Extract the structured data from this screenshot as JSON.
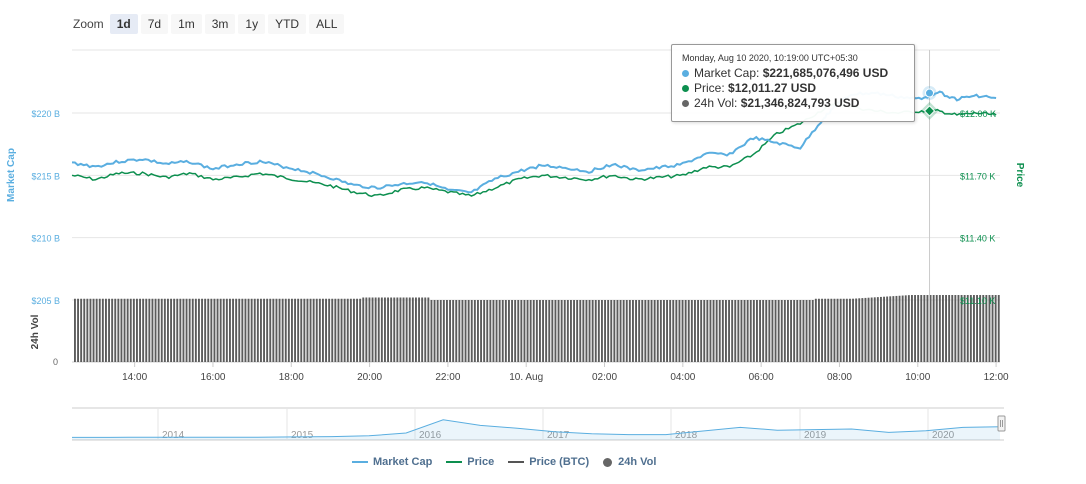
{
  "zoom": {
    "label": "Zoom",
    "buttons": [
      "1d",
      "7d",
      "1m",
      "3m",
      "1y",
      "YTD",
      "ALL"
    ],
    "active": "1d"
  },
  "colors": {
    "market_cap": "#5aaee0",
    "price": "#0d8f4f",
    "volume": "#666666",
    "price_btc": "#555555"
  },
  "tooltip": {
    "date": "Monday, Aug 10 2020, 10:19:00 UTC+05:30",
    "market_cap_label": "Market Cap:",
    "market_cap_value": "$221,685,076,496 USD",
    "price_label": "Price:",
    "price_value": "$12,011.27 USD",
    "vol_label": "24h Vol:",
    "vol_value": "$21,346,824,793 USD"
  },
  "legend": [
    {
      "label": "Market Cap",
      "kind": "line",
      "color": "#5aaee0"
    },
    {
      "label": "Price",
      "kind": "line",
      "color": "#0d8f4f"
    },
    {
      "label": "Price (BTC)",
      "kind": "line",
      "color": "#555555"
    },
    {
      "label": "24h Vol",
      "kind": "dot",
      "color": "#666666"
    }
  ],
  "chart_data": {
    "type": "line",
    "x_ticks": [
      "14:00",
      "16:00",
      "18:00",
      "20:00",
      "22:00",
      "10. Aug",
      "02:00",
      "04:00",
      "06:00",
      "08:00",
      "10:00",
      "12:00"
    ],
    "x_range_hours": [
      12.4,
      36.1
    ],
    "left_axis": {
      "label": "Market Cap",
      "ticks": [
        "$220 B",
        "$215 B",
        "$210 B",
        "$205 B"
      ],
      "tick_values": [
        220,
        215,
        210,
        205
      ],
      "unit": "B"
    },
    "right_axis": {
      "label": "Price",
      "ticks": [
        "$12.00 K",
        "$11.70 K",
        "$11.40 K",
        "$11.10 K"
      ],
      "tick_values": [
        12.0,
        11.7,
        11.4,
        11.1
      ],
      "unit": "K"
    },
    "volume_axis": {
      "label": "24h Vol",
      "ticks": [
        "0"
      ]
    },
    "market_cap": {
      "name": "Market Cap",
      "x": [
        12.4,
        13.0,
        13.6,
        14.2,
        14.8,
        15.4,
        16.0,
        16.6,
        17.2,
        17.8,
        18.4,
        19.0,
        19.6,
        20.2,
        20.8,
        21.4,
        22.0,
        22.6,
        23.2,
        23.8,
        24.4,
        25.0,
        25.6,
        26.2,
        26.8,
        27.4,
        28.0,
        28.6,
        29.2,
        29.8,
        30.4,
        31.0,
        31.6,
        31.9,
        32.3,
        32.9,
        33.5,
        34.1,
        34.5,
        35.0,
        35.5,
        36.0
      ],
      "y": [
        216.0,
        215.7,
        216.1,
        216.3,
        215.9,
        216.1,
        215.5,
        215.9,
        216.1,
        215.7,
        215.3,
        214.8,
        214.2,
        214.0,
        214.3,
        214.5,
        213.8,
        213.6,
        214.7,
        215.3,
        215.8,
        215.6,
        215.3,
        215.9,
        215.4,
        215.6,
        215.9,
        216.7,
        216.7,
        218.0,
        217.6,
        217.2,
        219.6,
        220.6,
        221.5,
        221.6,
        221.3,
        221.1,
        221.7,
        221.1,
        221.4,
        221.2
      ]
    },
    "price": {
      "name": "Price",
      "x": [
        12.4,
        13.0,
        13.6,
        14.2,
        14.8,
        15.4,
        16.0,
        16.6,
        17.2,
        17.8,
        18.4,
        19.0,
        19.6,
        20.2,
        20.8,
        21.4,
        22.0,
        22.6,
        23.2,
        23.8,
        24.4,
        25.0,
        25.6,
        26.2,
        26.8,
        27.4,
        28.0,
        28.6,
        29.2,
        29.8,
        30.4,
        31.0,
        31.6,
        31.9,
        32.3,
        32.9,
        33.5,
        34.1,
        34.5,
        35.0,
        35.5,
        36.0
      ],
      "y": [
        11.7,
        11.68,
        11.71,
        11.71,
        11.69,
        11.71,
        11.68,
        11.69,
        11.71,
        11.69,
        11.67,
        11.65,
        11.62,
        11.6,
        11.63,
        11.64,
        11.62,
        11.6,
        11.64,
        11.68,
        11.7,
        11.69,
        11.68,
        11.7,
        11.68,
        11.69,
        11.7,
        11.74,
        11.74,
        11.8,
        11.9,
        11.95,
        12.02,
        12.05,
        12.03,
        12.01,
        12.0,
        12.01,
        12.01,
        11.99,
        12.0,
        11.99
      ]
    },
    "volume": {
      "name": "24h Vol",
      "x_breaks": [
        12.4,
        19.8,
        21.5,
        31.3,
        32.3,
        33.8,
        36.1
      ],
      "level": [
        205.1,
        205.2,
        205.0,
        205.1,
        205.3,
        205.4
      ]
    },
    "hover_x": 34.3,
    "navigator": {
      "year_labels": [
        "2014",
        "2015",
        "2016",
        "2017",
        "2018",
        "2019",
        "2020"
      ],
      "profile": [
        0.02,
        0.02,
        0.03,
        0.03,
        0.03,
        0.03,
        0.04,
        0.05,
        0.08,
        0.18,
        0.65,
        0.45,
        0.35,
        0.22,
        0.15,
        0.12,
        0.12,
        0.25,
        0.38,
        0.28,
        0.3,
        0.32,
        0.2,
        0.26,
        0.38,
        0.4
      ]
    }
  }
}
